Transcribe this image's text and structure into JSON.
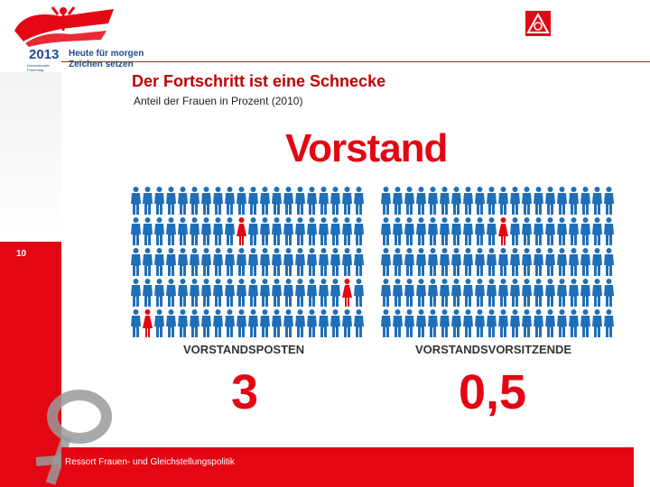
{
  "logo": {
    "year": "2013",
    "line1": "Heute für morgen",
    "line2": "Zeichen setzen",
    "small": "Internationaler Frauentag"
  },
  "slide_number": "10",
  "title": "Der Fortschritt ist eine Schnecke",
  "subtitle": "Anteil der Frauen in Prozent (2010)",
  "heading": "Vorstand",
  "categories": [
    {
      "label": "VORSTANDSPOSTEN",
      "value": "3"
    },
    {
      "label": "VORSTANDSVORSITZENDE",
      "value": "0,5"
    }
  ],
  "footer": "Ressort Frauen- und Gleichstellungspolitik",
  "colors": {
    "accent": "#e30613",
    "man": "#1f6fb8",
    "woman": "#e30613"
  },
  "icons": {
    "man": "man-figure-icon",
    "woman": "woman-figure-icon"
  },
  "pictograms": {
    "posten": {
      "total": 100,
      "women": 3
    },
    "vorsitzende": {
      "total": 100,
      "women": 0.5
    }
  }
}
